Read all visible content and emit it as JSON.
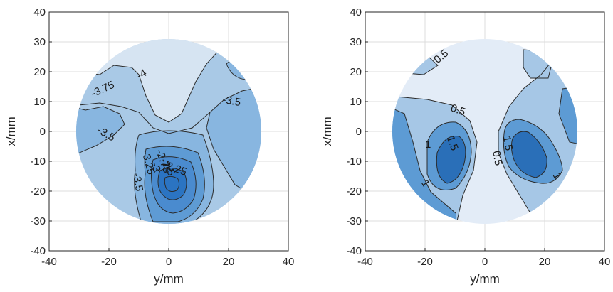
{
  "chart_data": [
    {
      "type": "filled-contour",
      "xlabel": "y/mm",
      "ylabel": "x/mm",
      "xlim": [
        -40,
        40
      ],
      "ylim": [
        -40,
        40
      ],
      "xticks": [
        -40,
        -20,
        0,
        20,
        40
      ],
      "yticks": [
        -40,
        -30,
        -20,
        -10,
        0,
        10,
        20,
        30,
        40
      ],
      "grid": true,
      "domain": {
        "shape": "circle",
        "center": [
          0,
          0
        ],
        "radius": 31
      },
      "colors": [
        "#d6e4f2",
        "#a9c9e6",
        "#88b6e0",
        "#5e9bd4",
        "#2b74c2"
      ],
      "contour_labels": [
        {
          "text": "-4",
          "x": -9,
          "y": 19,
          "angle": 30
        },
        {
          "text": "-3.75",
          "x": -22,
          "y": 14,
          "angle": 25
        },
        {
          "text": "-3.5",
          "x": 21,
          "y": 10,
          "angle": -10
        },
        {
          "text": "-3.5",
          "x": -21,
          "y": -1,
          "angle": -30
        },
        {
          "text": "-3.5",
          "x": -10.5,
          "y": -17,
          "angle": -80
        },
        {
          "text": "-3.25",
          "x": -7,
          "y": -10.5,
          "angle": -75
        },
        {
          "text": "-3",
          "x": -4.5,
          "y": -12,
          "angle": -75
        },
        {
          "text": "-2.75",
          "x": -2,
          "y": -10,
          "angle": -70
        },
        {
          "text": "-2.5",
          "x": -0.5,
          "y": -12,
          "angle": -60
        },
        {
          "text": "-2.25",
          "x": 2,
          "y": -12.5,
          "angle": -20
        }
      ]
    },
    {
      "type": "filled-contour",
      "xlabel": "y/mm",
      "ylabel": "x/mm",
      "xlim": [
        -40,
        40
      ],
      "ylim": [
        -40,
        40
      ],
      "xticks": [
        -40,
        -20,
        0,
        20,
        40
      ],
      "yticks": [
        -40,
        -30,
        -20,
        -10,
        0,
        10,
        20,
        30,
        40
      ],
      "grid": true,
      "domain": {
        "shape": "circle",
        "center": [
          0,
          0
        ],
        "radius": 31
      },
      "colors": [
        "#e3ecf7",
        "#a6c7e6",
        "#5d9bd4",
        "#2a6fb8"
      ],
      "contour_labels": [
        {
          "text": "0.5",
          "x": -14.5,
          "y": 25,
          "angle": 40
        },
        {
          "text": "0.5",
          "x": -9,
          "y": 7,
          "angle": -20
        },
        {
          "text": "1",
          "x": -19,
          "y": -4.5,
          "angle": 0
        },
        {
          "text": "1.5",
          "x": -11,
          "y": -4,
          "angle": -70
        },
        {
          "text": "1",
          "x": -20,
          "y": -17.5,
          "angle": -60
        },
        {
          "text": "1.5",
          "x": 7.5,
          "y": -4,
          "angle": -80
        },
        {
          "text": "0.5",
          "x": 4,
          "y": -9,
          "angle": -80
        },
        {
          "text": "1",
          "x": 24,
          "y": -15,
          "angle": -60
        }
      ]
    }
  ]
}
